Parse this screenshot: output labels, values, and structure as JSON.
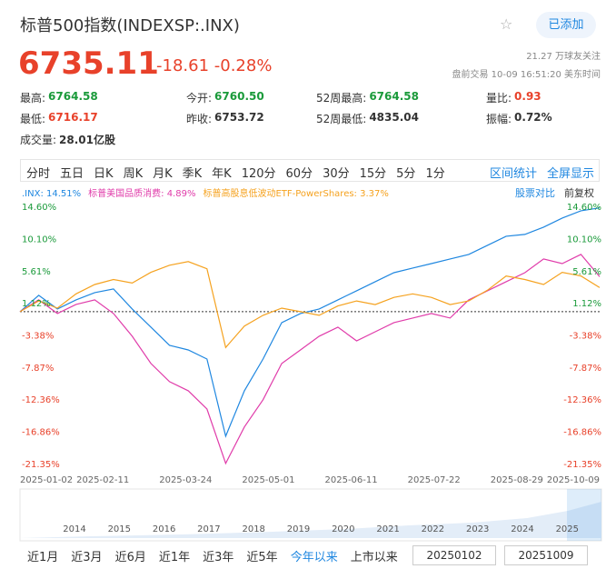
{
  "header": {
    "title": "标普500指数(INDEXSP:.INX)",
    "button": "已添加",
    "price": "6735.11",
    "change": "-18.61",
    "change_pct": "-0.28%",
    "followers": "21.27 万球友关注",
    "status": "盘前交易 10-09 16:51:20 美东时间"
  },
  "stats": [
    [
      {
        "label": "最高:",
        "value": "6764.58",
        "tone": "up"
      },
      {
        "label": "今开:",
        "value": "6760.50",
        "tone": "up"
      },
      {
        "label": "52周最高:",
        "value": "6764.58",
        "tone": "up"
      },
      {
        "label": "量比:",
        "value": "0.93",
        "tone": "down"
      }
    ],
    [
      {
        "label": "最低:",
        "value": "6716.17",
        "tone": "down"
      },
      {
        "label": "昨收:",
        "value": "6753.72",
        "tone": "flat"
      },
      {
        "label": "52周最低:",
        "value": "4835.04",
        "tone": "flat"
      },
      {
        "label": "振幅:",
        "value": "0.72%",
        "tone": "flat"
      }
    ],
    [
      {
        "label": "成交量:",
        "value": "28.01亿股",
        "tone": "flat"
      }
    ]
  ],
  "tabs": [
    "分时",
    "五日",
    "日K",
    "周K",
    "月K",
    "季K",
    "年K",
    "120分",
    "60分",
    "30分",
    "15分",
    "5分",
    "1分"
  ],
  "tab_actions": [
    "区间统计",
    "全屏显示"
  ],
  "chart": {
    "type": "line",
    "legend": [
      ".INX: 14.51%",
      "标普美国品质消费: 4.89%",
      "标普高股息低波动ETF-PowerShares: 3.37%"
    ],
    "compare": "股票对比",
    "adjust": "前复权",
    "x_labels": [
      "2025-01-02",
      "2025-02-11",
      "2025-03-24",
      "2025-05-01",
      "2025-06-11",
      "2025-07-22",
      "2025-08-29",
      "2025-10-09"
    ],
    "ylim": [
      -21.35,
      14.6
    ],
    "yticks": [
      {
        "value": 14.6,
        "label": "14.60%"
      },
      {
        "value": 10.1,
        "label": "10.10%"
      },
      {
        "value": 5.61,
        "label": "5.61%"
      },
      {
        "value": 1.12,
        "label": "1.12%"
      },
      {
        "value": -3.38,
        "label": "-3.38%"
      },
      {
        "value": -7.87,
        "label": "-7.87%"
      },
      {
        "value": -12.36,
        "label": "-12.36%"
      },
      {
        "value": -16.86,
        "label": "-16.86%"
      },
      {
        "value": -21.35,
        "label": "-21.35%"
      }
    ],
    "series": [
      {
        "name": ".INX",
        "color": "#1f87e0",
        "values": [
          0,
          2.29,
          0.38,
          1.65,
          2.67,
          3.18,
          0.38,
          -2.16,
          -4.7,
          -5.34,
          -6.61,
          -17.4,
          -11.05,
          -6.61,
          -1.52,
          -0.25,
          0.38,
          1.65,
          2.92,
          4.19,
          5.46,
          6.1,
          6.73,
          7.37,
          8.01,
          9.28,
          10.55,
          10.8,
          11.82,
          13.09,
          14.1,
          14.51
        ]
      },
      {
        "name": "标普美国品质消费",
        "color": "#e03caa",
        "values": [
          0,
          1.65,
          -0.25,
          1.02,
          1.65,
          -0.25,
          -3.43,
          -7.24,
          -9.78,
          -11.05,
          -13.6,
          -21.2,
          -16.1,
          -12.3,
          -7.24,
          -5.34,
          -3.43,
          -2.16,
          -4.07,
          -2.8,
          -1.52,
          -0.89,
          -0.25,
          -0.89,
          1.65,
          2.92,
          4.19,
          5.46,
          7.37,
          6.73,
          8.01,
          4.89
        ]
      },
      {
        "name": "标普高股息低波动ETF-PowerShares",
        "color": "#f5a21f",
        "values": [
          0,
          1.5,
          0.5,
          2.5,
          3.8,
          4.5,
          4.0,
          5.5,
          6.5,
          7.0,
          6.0,
          -5.0,
          -2.0,
          -0.5,
          0.5,
          0.0,
          -0.5,
          0.8,
          1.5,
          1.0,
          2.0,
          2.5,
          2.0,
          1.0,
          1.5,
          3.0,
          5.0,
          4.5,
          3.8,
          5.5,
          5.0,
          3.37
        ]
      }
    ]
  },
  "navigator_years": [
    "2014",
    "2015",
    "2016",
    "2017",
    "2018",
    "2019",
    "2020",
    "2021",
    "2022",
    "2023",
    "2024",
    "2025"
  ],
  "ranges": [
    {
      "label": "近1月",
      "active": false
    },
    {
      "label": "近3月",
      "active": false
    },
    {
      "label": "近6月",
      "active": false
    },
    {
      "label": "近1年",
      "active": false
    },
    {
      "label": "近3年",
      "active": false
    },
    {
      "label": "近5年",
      "active": false
    },
    {
      "label": "今年以来",
      "active": true
    },
    {
      "label": "上市以来",
      "active": false
    }
  ],
  "date_from": "20250102",
  "date_to": "20251009"
}
